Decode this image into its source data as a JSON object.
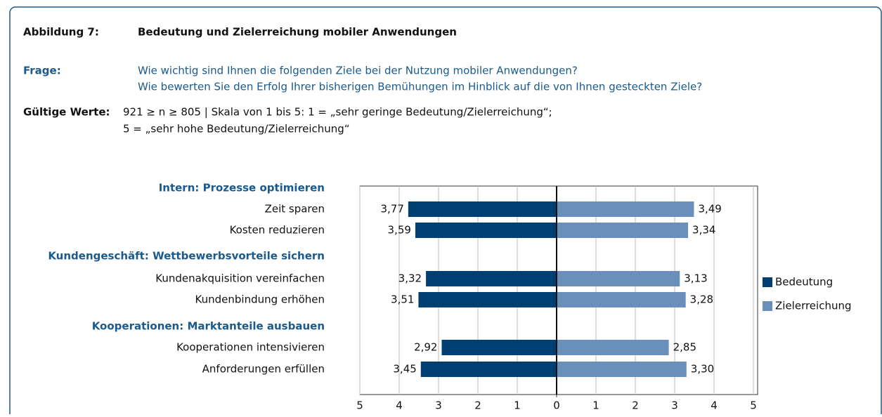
{
  "figure_label": "Abbildung 7:",
  "figure_title": "Bedeutung und Zielerreichung mobiler Anwendungen",
  "question_label": "Frage:",
  "question_lines": [
    "Wie wichtig sind Ihnen die folgenden Ziele bei der Nutzung mobiler Anwendungen?",
    "Wie bewerten Sie den Erfolg Ihrer bisherigen Bemühungen im Hinblick auf die von Ihnen gesteckten Ziele?"
  ],
  "valid_label": "Gültige Werte:",
  "valid_lines": [
    "921 ≥ n ≥ 805 | Skala von 1 bis 5: 1 = „sehr geringe Bedeutung/Zielerreichung“;",
    "5 = „sehr hohe Bedeutung/Zielerreichung“"
  ],
  "chart_data": {
    "type": "butterfly_bar",
    "groups": [
      {
        "title": "Intern: Prozesse optimieren",
        "categories": [
          "Zeit sparen",
          "Kosten reduzieren"
        ]
      },
      {
        "title": "Kundengeschäft: Wettbewerbsvorteile sichern",
        "categories": [
          "Kundenakquisition vereinfachen",
          "Kundenbindung erhöhen"
        ]
      },
      {
        "title": "Kooperationen: Marktanteile ausbauen",
        "categories": [
          "Kooperationen intensivieren",
          "Anforderungen erfüllen"
        ]
      }
    ],
    "series": [
      {
        "name": "Bedeutung",
        "color": "#003f72",
        "axis": "left",
        "values": [
          3.77,
          3.59,
          3.32,
          3.51,
          2.92,
          3.45
        ],
        "value_labels": [
          "3,77",
          "3,59",
          "3,32",
          "3,51",
          "2,92",
          "3,45"
        ]
      },
      {
        "name": "Zielerreichung",
        "color": "#6b8fbb",
        "axis": "right",
        "values": [
          3.49,
          3.34,
          3.13,
          3.28,
          2.85,
          3.3
        ],
        "value_labels": [
          "3,49",
          "3,34",
          "3,13",
          "3,28",
          "2,85",
          "3,30"
        ]
      }
    ],
    "xlim_left": [
      5,
      0
    ],
    "xticks_left": [
      5,
      4,
      3,
      2,
      1
    ],
    "xlim_right": [
      0,
      5
    ],
    "xticks_right": [
      0,
      1,
      2,
      3,
      4,
      5
    ],
    "grid": true,
    "legend": "right"
  }
}
